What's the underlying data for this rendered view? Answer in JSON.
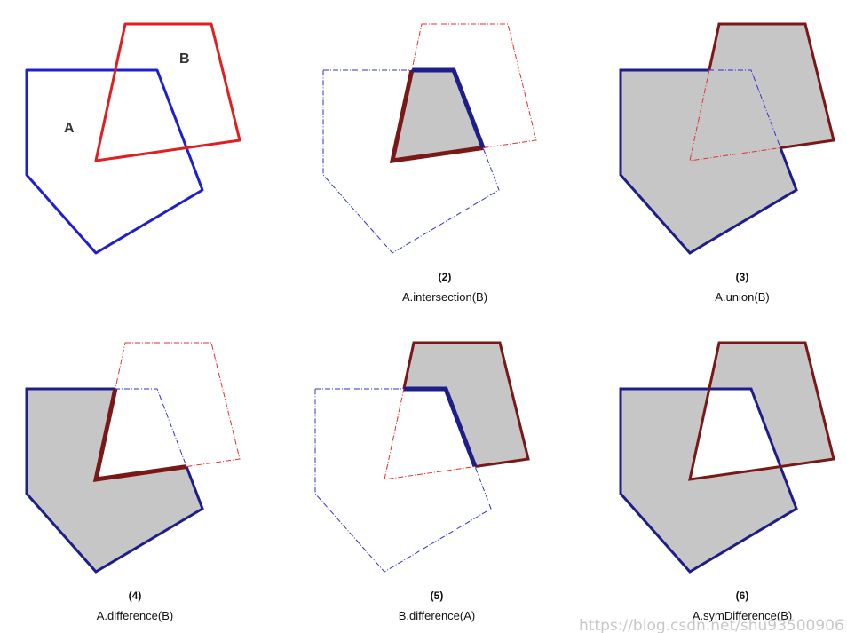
{
  "labels": {
    "a": "A",
    "b": "B"
  },
  "panels": [
    {
      "number": "",
      "caption": ""
    },
    {
      "number": "(2)",
      "caption": "A.intersection(B)"
    },
    {
      "number": "(3)",
      "caption": "A.union(B)"
    },
    {
      "number": "(4)",
      "caption": "A.difference(B)"
    },
    {
      "number": "(5)",
      "caption": "B.difference(A)"
    },
    {
      "number": "(6)",
      "caption": "A.symDifference(B)"
    }
  ],
  "watermark": "https://blog.csdn.net/shu93500906",
  "colors": {
    "polygon_a": "#1f1fd0",
    "polygon_b": "#e02020",
    "polygon_a_dark": "#1e1e8a",
    "polygon_b_dark": "#7a1818",
    "fill": "#c6c6c6"
  }
}
